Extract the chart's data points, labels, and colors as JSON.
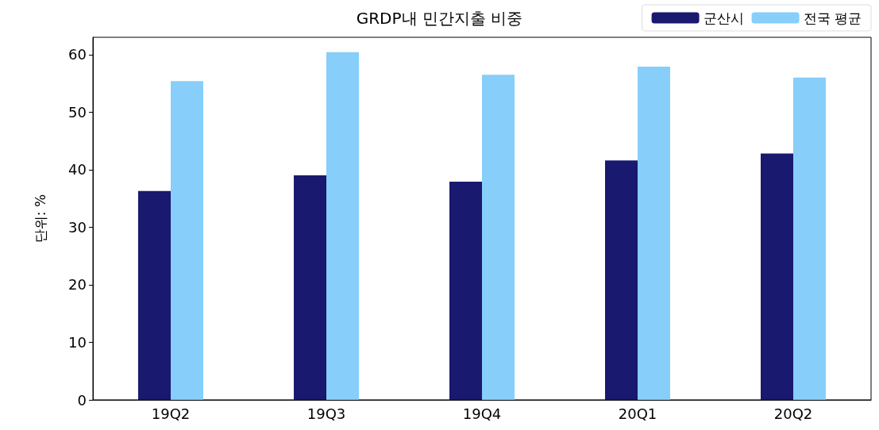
{
  "chart_data": {
    "type": "bar",
    "title": "GRDP내 민간지출 비중",
    "ylabel": "단위: %",
    "categories": [
      "19Q2",
      "19Q3",
      "19Q4",
      "20Q1",
      "20Q2"
    ],
    "series": [
      {
        "name": "군산시",
        "color": "#191970",
        "values": [
          36.3,
          39.0,
          37.9,
          41.6,
          42.8
        ]
      },
      {
        "name": "전국 평균",
        "color": "#87cefa",
        "values": [
          55.4,
          60.4,
          56.5,
          57.9,
          56.0
        ]
      }
    ],
    "ylim": [
      0,
      63
    ],
    "yticks": [
      0,
      10,
      20,
      30,
      40,
      50,
      60
    ],
    "grid": false,
    "legend": "top right"
  }
}
